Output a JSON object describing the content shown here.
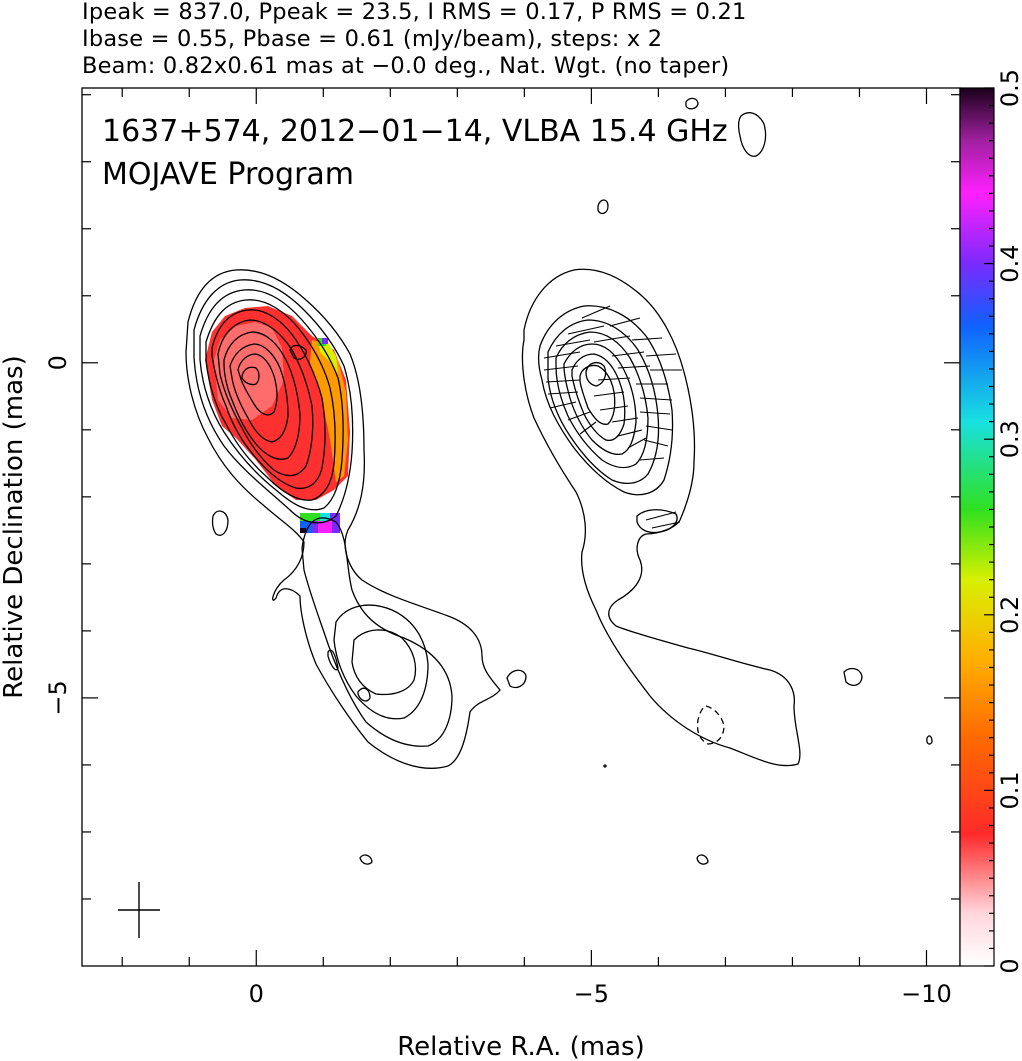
{
  "header": {
    "line1": "Ipeak = 837.0, Ppeak = 23.5, I RMS = 0.17, P RMS = 0.21",
    "line2": "Ibase = 0.55, Pbase = 0.61 (mJy/beam), steps: x 2",
    "line3": "Beam: 0.82x0.61 mas at −0.0 deg., Nat. Wgt. (no taper)"
  },
  "chart_data": {
    "type": "contour",
    "title": "1637+574, 2012−01−14, VLBA 15.4 GHz",
    "subtitle": "MOJAVE Program",
    "xlabel": "Relative R.A. (mas)",
    "ylabel": "Relative Declination (mas)",
    "xlim": [
      2.6,
      -10.5
    ],
    "ylim": [
      -9.0,
      4.1
    ],
    "xticks": [
      {
        "value": 0,
        "label": "0"
      },
      {
        "value": -5,
        "label": "−5"
      },
      {
        "value": -10,
        "label": "−10"
      }
    ],
    "yticks": [
      {
        "value": 0,
        "label": "0"
      },
      {
        "value": -5,
        "label": "−5"
      }
    ],
    "grid": false,
    "beam": {
      "major_mas": 0.82,
      "minor_mas": 0.61,
      "pa_deg": -0.0
    },
    "colorbar": {
      "min": 0,
      "max": 0.5,
      "ticks": [
        {
          "value": 0,
          "label": "0"
        },
        {
          "value": 0.1,
          "label": "0.1"
        },
        {
          "value": 0.2,
          "label": "0.2"
        },
        {
          "value": 0.3,
          "label": "0.3"
        },
        {
          "value": 0.4,
          "label": "0.4"
        },
        {
          "value": 0.5,
          "label": "0.5"
        }
      ]
    },
    "panels": [
      {
        "name": "Stokes I contours with fractional polarization colour map",
        "core_offset_mas": 0
      },
      {
        "name": "Stokes I contours with EVPA sticks",
        "core_offset_mas": -5
      }
    ],
    "colors": {
      "axes": "#000000",
      "contour": "#000000"
    }
  }
}
